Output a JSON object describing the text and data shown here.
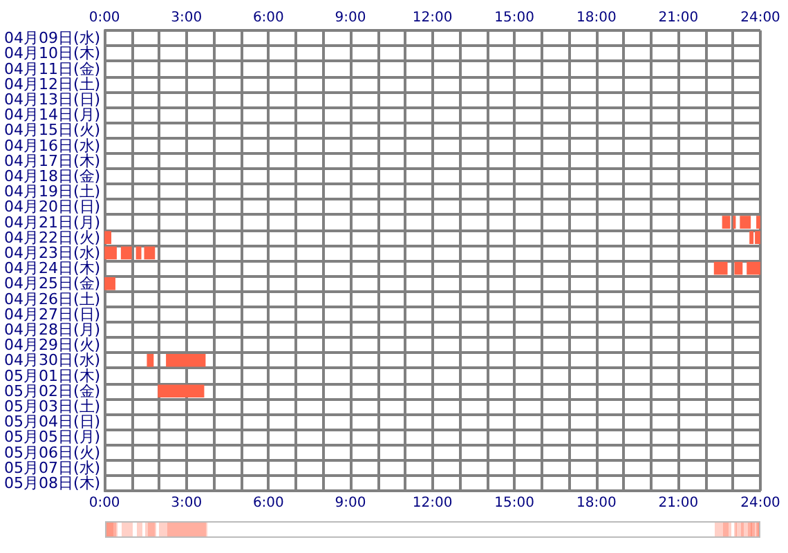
{
  "chart_data": {
    "type": "bar",
    "orientation": "horizontal",
    "grid": true,
    "categories": [
      "04月09日(水)",
      "04月10日(木)",
      "04月11日(金)",
      "04月12日(土)",
      "04月13日(日)",
      "04月14日(月)",
      "04月15日(火)",
      "04月16日(水)",
      "04月17日(木)",
      "04月18日(金)",
      "04月19日(土)",
      "04月20日(日)",
      "04月21日(月)",
      "04月22日(火)",
      "04月23日(水)",
      "04月24日(木)",
      "04月25日(金)",
      "04月26日(土)",
      "04月27日(日)",
      "04月28日(月)",
      "04月29日(火)",
      "04月30日(水)",
      "05月01日(木)",
      "05月02日(金)",
      "05月03日(土)",
      "05月04日(日)",
      "05月05日(月)",
      "05月06日(火)",
      "05月07日(水)",
      "05月08日(木)"
    ],
    "series": [
      {
        "color": "#ff6347",
        "base": [
          null,
          null,
          null,
          null,
          null,
          null,
          null,
          null,
          null,
          null,
          null,
          null,
          22.6,
          0,
          0,
          22.3,
          0,
          null,
          null,
          null,
          null,
          1.55,
          null,
          1.95,
          null,
          null,
          null,
          null,
          null,
          null
        ],
        "values": [
          null,
          null,
          null,
          null,
          null,
          null,
          null,
          null,
          null,
          null,
          null,
          null,
          0.3,
          0.25,
          0.45,
          0.5,
          0.4,
          null,
          null,
          null,
          null,
          0.25,
          null,
          1.7,
          null,
          null,
          null,
          null,
          null,
          null
        ]
      },
      {
        "color": "#ff6347",
        "base": [
          null,
          null,
          null,
          null,
          null,
          null,
          null,
          null,
          null,
          null,
          null,
          null,
          23.0,
          23.6,
          0.6,
          23.05,
          null,
          null,
          null,
          null,
          null,
          2.25,
          null,
          null,
          null,
          null,
          null,
          null,
          null,
          null
        ],
        "values": [
          null,
          null,
          null,
          null,
          null,
          null,
          null,
          null,
          null,
          null,
          null,
          null,
          0.1,
          0.15,
          0.4,
          0.3,
          null,
          null,
          null,
          null,
          null,
          1.45,
          null,
          null,
          null,
          null,
          null,
          null,
          null,
          null
        ]
      },
      {
        "color": "#ff6347",
        "base": [
          null,
          null,
          null,
          null,
          null,
          null,
          null,
          null,
          null,
          null,
          null,
          null,
          23.25,
          23.8,
          1.15,
          23.5,
          null,
          null,
          null,
          null,
          null,
          null,
          null,
          null,
          null,
          null,
          null,
          null,
          null,
          null
        ],
        "values": [
          null,
          null,
          null,
          null,
          null,
          null,
          null,
          null,
          null,
          null,
          null,
          null,
          0.4,
          0.2,
          0.2,
          0.5,
          null,
          null,
          null,
          null,
          null,
          null,
          null,
          null,
          null,
          null,
          null,
          null,
          null,
          null
        ]
      },
      {
        "color": "#ff6347",
        "base": [
          null,
          null,
          null,
          null,
          null,
          null,
          null,
          null,
          null,
          null,
          null,
          null,
          23.85,
          null,
          1.45,
          null,
          null,
          null,
          null,
          null,
          null,
          null,
          null,
          null,
          null,
          null,
          null,
          null,
          null,
          null
        ],
        "values": [
          null,
          null,
          null,
          null,
          null,
          null,
          null,
          null,
          null,
          null,
          null,
          null,
          0.15,
          null,
          0.4,
          null,
          null,
          null,
          null,
          null,
          null,
          null,
          null,
          null,
          null,
          null,
          null,
          null,
          null,
          null
        ]
      }
    ],
    "xlim": [
      0,
      24
    ],
    "xticks": [
      {
        "value": 0,
        "label": "0:00"
      },
      {
        "value": 1,
        "label": null
      },
      {
        "value": 2,
        "label": null
      },
      {
        "value": 3,
        "label": "3:00"
      },
      {
        "value": 4,
        "label": null
      },
      {
        "value": 5,
        "label": null
      },
      {
        "value": 6,
        "label": "6:00"
      },
      {
        "value": 7,
        "label": null
      },
      {
        "value": 8,
        "label": null
      },
      {
        "value": 9,
        "label": "9:00"
      },
      {
        "value": 10,
        "label": null
      },
      {
        "value": 11,
        "label": null
      },
      {
        "value": 12,
        "label": "12:00"
      },
      {
        "value": 13,
        "label": null
      },
      {
        "value": 14,
        "label": null
      },
      {
        "value": 15,
        "label": "15:00"
      },
      {
        "value": 16,
        "label": null
      },
      {
        "value": 17,
        "label": null
      },
      {
        "value": 18,
        "label": "18:00"
      },
      {
        "value": 19,
        "label": null
      },
      {
        "value": 20,
        "label": null
      },
      {
        "value": 21,
        "label": "21:00"
      },
      {
        "value": 22,
        "label": null
      },
      {
        "value": 23,
        "label": null
      },
      {
        "value": 24,
        "label": "24:00"
      }
    ],
    "x2lim": [
      0,
      24
    ],
    "x2ticks": [
      {
        "value": 0,
        "label": "0:00"
      },
      {
        "value": 1,
        "label": null
      },
      {
        "value": 2,
        "label": null
      },
      {
        "value": 3,
        "label": "3:00"
      },
      {
        "value": 4,
        "label": null
      },
      {
        "value": 5,
        "label": null
      },
      {
        "value": 6,
        "label": "6:00"
      },
      {
        "value": 7,
        "label": null
      },
      {
        "value": 8,
        "label": null
      },
      {
        "value": 9,
        "label": "9:00"
      },
      {
        "value": 10,
        "label": null
      },
      {
        "value": 11,
        "label": null
      },
      {
        "value": 12,
        "label": "12:00"
      },
      {
        "value": 13,
        "label": null
      },
      {
        "value": 14,
        "label": null
      },
      {
        "value": 15,
        "label": "15:00"
      },
      {
        "value": 16,
        "label": null
      },
      {
        "value": 17,
        "label": null
      },
      {
        "value": 18,
        "label": "18:00"
      },
      {
        "value": 19,
        "label": null
      },
      {
        "value": 20,
        "label": null
      },
      {
        "value": 21,
        "label": "21:00"
      },
      {
        "value": 22,
        "label": null
      },
      {
        "value": 23,
        "label": null
      },
      {
        "value": 24,
        "label": "24:00"
      }
    ]
  }
}
